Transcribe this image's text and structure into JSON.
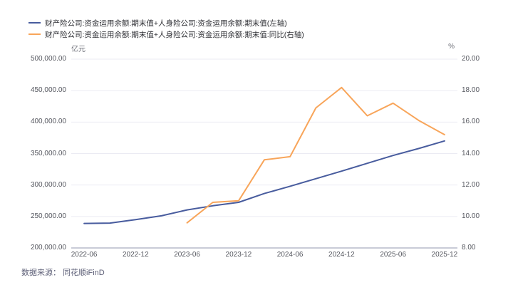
{
  "legend": {
    "items": [
      {
        "label": "财产险公司:资金运用余额:期末值+人身险公司:资金运用余额:期末值(左轴)",
        "color": "#485C9E"
      },
      {
        "label": "财产险公司:资金运用余额:期末值+人身险公司:资金运用余额:期末值:同比(右轴)",
        "color": "#F8A55A"
      }
    ]
  },
  "footer": {
    "source_text": "数据来源： 同花顺iFinD"
  },
  "colors": {
    "background": "#FFFFFF",
    "grid": "#EBEBF3",
    "axis_line": "#B7BACA",
    "tick_text": "#55575F",
    "legend_text": "#2E2F34",
    "footer_text": "#5D5F77",
    "series_left": "#485C9E",
    "series_right": "#F8A55A"
  },
  "chart_data": {
    "type": "line",
    "title": "",
    "grid": true,
    "legend_position": "top-left",
    "categories": [
      "2022-06",
      "2022-09",
      "2022-12",
      "2023-03",
      "2023-06",
      "2023-09",
      "2023-12",
      "2024-03",
      "2024-06",
      "2024-09",
      "2024-12",
      "2025-03",
      "2025-06",
      "2025-09",
      "2025-12"
    ],
    "x_tick_labels": [
      "2022-06",
      "2022-12",
      "2023-06",
      "2023-12",
      "2024-06",
      "2024-12",
      "2025-06",
      "2025-12"
    ],
    "series": [
      {
        "name": "财产险公司:资金运用余额:期末值+人身险公司:资金运用余额:期末值(左轴)",
        "axis": "left",
        "color": "#485C9E",
        "values": [
          239000,
          239500,
          245000,
          251000,
          260500,
          267000,
          272500,
          286500,
          298000,
          310000,
          322000,
          334500,
          347000,
          358000,
          370000
        ]
      },
      {
        "name": "财产险公司:资金运用余额:期末值+人身险公司:资金运用余额:期末值:同比(右轴)",
        "axis": "right",
        "color": "#F8A55A",
        "values": [
          null,
          null,
          null,
          null,
          9.6,
          10.9,
          11.0,
          13.6,
          13.8,
          16.9,
          18.2,
          16.4,
          17.2,
          16.1,
          15.2
        ]
      }
    ],
    "left_axis": {
      "unit": "亿元",
      "min": 200000,
      "max": 500000,
      "tick_labels": [
        "500,000.00",
        "450,000.00",
        "400,000.00",
        "350,000.00",
        "300,000.00",
        "250,000.00",
        "200,000.00"
      ]
    },
    "right_axis": {
      "unit": "%",
      "min": 8,
      "max": 20,
      "tick_labels": [
        "20.00",
        "18.00",
        "16.00",
        "14.00",
        "12.00",
        "10.00",
        "8.00"
      ]
    }
  }
}
